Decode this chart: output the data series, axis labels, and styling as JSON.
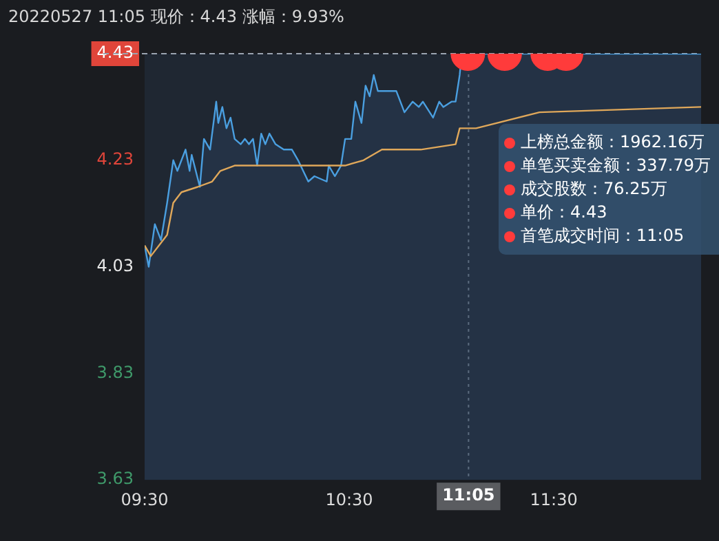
{
  "chart_data": {
    "type": "line",
    "title": "20220527 11:05 现价：4.43 涨幅：9.93%",
    "xlim": [
      9.5,
      12.22
    ],
    "xticks": [
      {
        "value": 9.5,
        "label": "09:30"
      },
      {
        "value": 10.5,
        "label": "10:30"
      },
      {
        "value": 11.5,
        "label": "11:30"
      }
    ],
    "ylim": [
      3.63,
      4.43
    ],
    "yticks": [
      3.63,
      3.83,
      4.03,
      4.23,
      4.43
    ],
    "grid": false,
    "legend": false,
    "series": [
      {
        "type": "area",
        "color": "#4a9fe0",
        "x": [
          9.5,
          9.52,
          9.55,
          9.58,
          9.61,
          9.64,
          9.66,
          9.7,
          9.72,
          9.73,
          9.77,
          9.79,
          9.82,
          9.85,
          9.86,
          9.88,
          9.9,
          9.92,
          9.94,
          9.97,
          9.99,
          10.01,
          10.03,
          10.05,
          10.07,
          10.09,
          10.11,
          10.14,
          10.18,
          10.22,
          10.25,
          10.3,
          10.33,
          10.39,
          10.4,
          10.43,
          10.46,
          10.48,
          10.51,
          10.53,
          10.56,
          10.58,
          10.6,
          10.62,
          10.64,
          10.68,
          10.7,
          10.73,
          10.77,
          10.81,
          10.84,
          10.86,
          10.91,
          10.94,
          10.96,
          11.0,
          11.02,
          11.04,
          11.05,
          12.22
        ],
        "values": [
          4.07,
          4.03,
          4.11,
          4.08,
          4.15,
          4.23,
          4.21,
          4.25,
          4.21,
          4.24,
          4.18,
          4.27,
          4.25,
          4.34,
          4.3,
          4.33,
          4.29,
          4.31,
          4.27,
          4.26,
          4.27,
          4.26,
          4.27,
          4.22,
          4.28,
          4.26,
          4.28,
          4.26,
          4.25,
          4.25,
          4.23,
          4.19,
          4.2,
          4.19,
          4.22,
          4.2,
          4.22,
          4.27,
          4.27,
          4.34,
          4.3,
          4.37,
          4.35,
          4.39,
          4.36,
          4.36,
          4.36,
          4.36,
          4.32,
          4.34,
          4.33,
          4.34,
          4.31,
          4.34,
          4.33,
          4.34,
          4.34,
          4.39,
          4.43,
          4.43
        ]
      },
      {
        "type": "line",
        "color": "#e0a85a",
        "x": [
          9.5,
          9.53,
          9.61,
          9.64,
          9.68,
          9.76,
          9.83,
          9.87,
          9.94,
          10.09,
          10.48,
          10.57,
          10.66,
          10.85,
          11.02,
          11.04,
          11.12,
          11.43,
          12.22
        ],
        "values": [
          4.07,
          4.05,
          4.09,
          4.15,
          4.17,
          4.18,
          4.19,
          4.21,
          4.22,
          4.22,
          4.22,
          4.23,
          4.25,
          4.25,
          4.26,
          4.29,
          4.29,
          4.32,
          4.33
        ]
      },
      {
        "type": "scatter",
        "color": "#ff3b3b",
        "marker": "circle",
        "x": [
          11.08,
          11.26,
          11.47,
          11.56
        ],
        "values": [
          4.43,
          4.43,
          4.43,
          4.43
        ]
      }
    ],
    "ref_lines": [
      {
        "axis": "y",
        "value": 4.43,
        "color": "#9aa4b0",
        "line_style": "dashed"
      },
      {
        "axis": "x",
        "value": 11.0833,
        "label": "11:05",
        "color": "#9aa4b0",
        "line_style": "dotted"
      }
    ],
    "annotations": [
      "上榜总金额：1962.16万",
      "单笔买卖金额：337.79万",
      "成交股数：76.25万",
      "单价：4.43",
      "首笔成交时间：11:05"
    ]
  }
}
